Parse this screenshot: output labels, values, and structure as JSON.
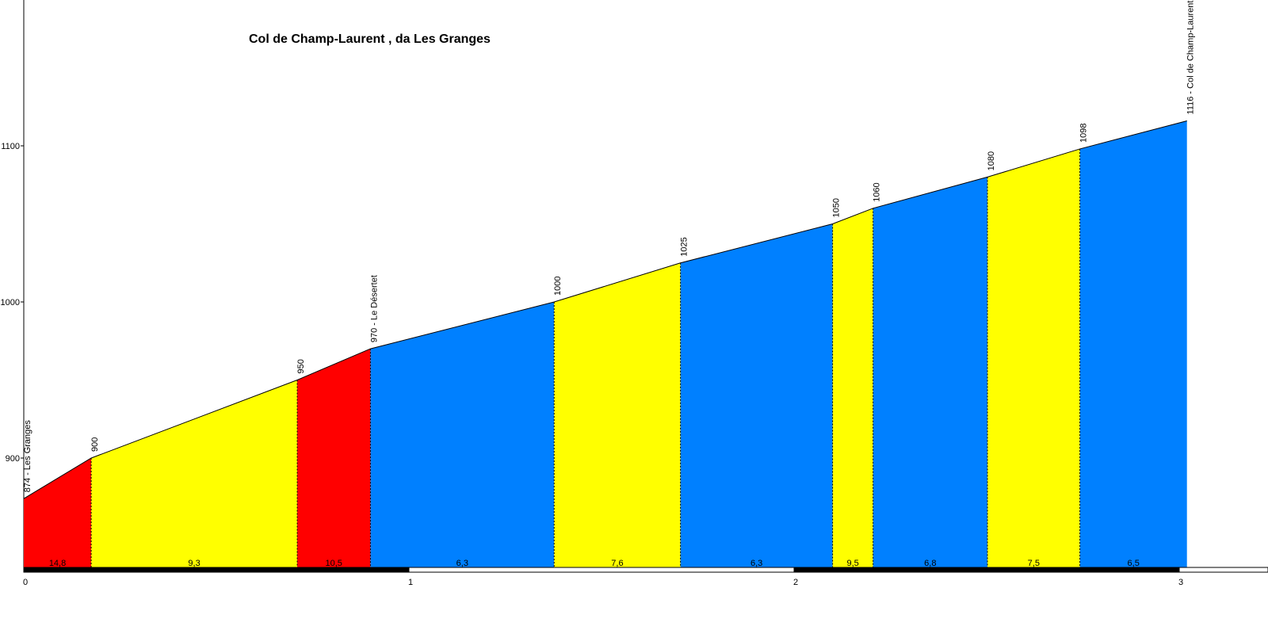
{
  "chart_data": {
    "type": "area",
    "title": "Col de Champ-Laurent , da Les Granges",
    "xlabel": "",
    "ylabel": "",
    "xlim": [
      0,
      3.18
    ],
    "ylim": [
      830,
      1200
    ],
    "y_ticks": [
      900,
      1000,
      1100
    ],
    "x_ticks": [
      0,
      1,
      2,
      3
    ],
    "points": [
      {
        "x": 0.0,
        "y": 874,
        "label": "874 - Les Granges"
      },
      {
        "x": 0.175,
        "y": 900,
        "label": "900"
      },
      {
        "x": 0.71,
        "y": 950,
        "label": "950"
      },
      {
        "x": 0.9,
        "y": 970,
        "label": "970 - Le Désertet"
      },
      {
        "x": 1.377,
        "y": 1000,
        "label": "1000"
      },
      {
        "x": 1.705,
        "y": 1025,
        "label": "1025"
      },
      {
        "x": 2.1,
        "y": 1050,
        "label": "1050"
      },
      {
        "x": 2.205,
        "y": 1060,
        "label": "1060"
      },
      {
        "x": 2.502,
        "y": 1080,
        "label": "1080"
      },
      {
        "x": 2.742,
        "y": 1098,
        "label": "1098"
      },
      {
        "x": 3.02,
        "y": 1116,
        "label": "1116 - Col de Champ-Laurent"
      }
    ],
    "segments": [
      {
        "grade": "14,8",
        "color": "#ff0000"
      },
      {
        "grade": "9,3",
        "color": "#ffff00"
      },
      {
        "grade": "10,5",
        "color": "#ff0000"
      },
      {
        "grade": "6,3",
        "color": "#0080ff"
      },
      {
        "grade": "7,6",
        "color": "#ffff00"
      },
      {
        "grade": "6,3",
        "color": "#0080ff"
      },
      {
        "grade": "9,5",
        "color": "#ffff00"
      },
      {
        "grade": "6,8",
        "color": "#0080ff"
      },
      {
        "grade": "7,5",
        "color": "#ffff00"
      },
      {
        "grade": "6,5",
        "color": "#0080ff"
      }
    ]
  }
}
